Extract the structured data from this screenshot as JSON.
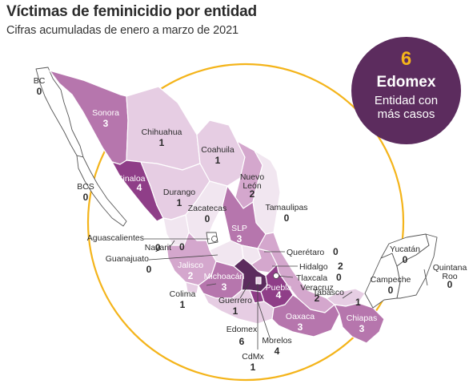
{
  "title": "Víctimas de feminicidio por entidad",
  "subtitle": "Cifras acumuladas de enero a marzo de 2021",
  "highlight": {
    "value": "6",
    "state": "Edomex",
    "description": "Entidad con más casos"
  },
  "colors": {
    "ring": "#f4b41a",
    "badge": "#5c2c5e",
    "level_0": "#f1e6f0",
    "level_1": "#e6cde3",
    "level_2": "#d4a7cd",
    "level_3": "#b676ad",
    "level_4": "#8f3e88",
    "level_6": "#5c2c5e"
  },
  "states": [
    {
      "name": "BC",
      "value": "0"
    },
    {
      "name": "Sonora",
      "value": "3"
    },
    {
      "name": "Chihuahua",
      "value": "1"
    },
    {
      "name": "Coahuila",
      "value": "1"
    },
    {
      "name": "Nuevo León",
      "value": "2"
    },
    {
      "name": "BCS",
      "value": "0"
    },
    {
      "name": "Sinaloa",
      "value": "4"
    },
    {
      "name": "Durango",
      "value": "1"
    },
    {
      "name": "Tamaulipas",
      "value": "0"
    },
    {
      "name": "Zacatecas",
      "value": "0"
    },
    {
      "name": "SLP",
      "value": "3"
    },
    {
      "name": "Aguascalientes",
      "value": "0"
    },
    {
      "name": "Nayarit",
      "value": "0"
    },
    {
      "name": "Guanajuato",
      "value": "0"
    },
    {
      "name": "Querétaro",
      "value": "0"
    },
    {
      "name": "Hidalgo",
      "value": "2"
    },
    {
      "name": "Jalisco",
      "value": "2"
    },
    {
      "name": "Michoacán",
      "value": "3"
    },
    {
      "name": "Tlaxcala",
      "value": "0"
    },
    {
      "name": "Puebla",
      "value": "4"
    },
    {
      "name": "Veracruz",
      "value": "2"
    },
    {
      "name": "Colima",
      "value": "1"
    },
    {
      "name": "Guerrero",
      "value": "1"
    },
    {
      "name": "Tabasco",
      "value": "1"
    },
    {
      "name": "Yucatán",
      "value": "0"
    },
    {
      "name": "Campeche",
      "value": "0"
    },
    {
      "name": "Quintana Roo",
      "value": "0"
    },
    {
      "name": "Oaxaca",
      "value": "3"
    },
    {
      "name": "Chiapas",
      "value": "3"
    },
    {
      "name": "Edomex",
      "value": "6"
    },
    {
      "name": "Morelos",
      "value": "4"
    },
    {
      "name": "CdMx",
      "value": "1"
    }
  ]
}
